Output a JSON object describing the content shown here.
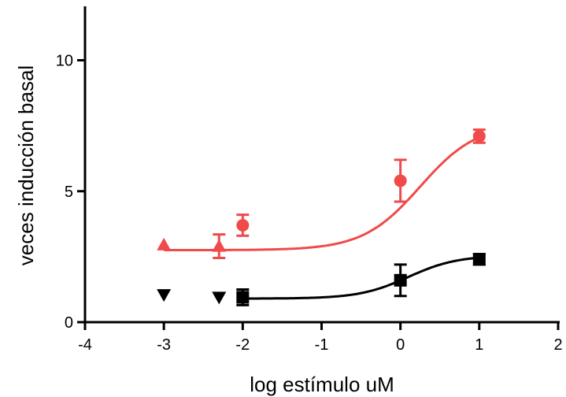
{
  "chart_data": {
    "type": "scatter",
    "title": "",
    "xlabel": "log estímulo uM",
    "ylabel": "veces inducción basal",
    "xlim": [
      -4,
      2
    ],
    "ylim": [
      0,
      12
    ],
    "xticks": [
      -4,
      -3,
      -2,
      -1,
      0,
      1,
      2
    ],
    "xtick_labels": [
      "-4",
      "-3",
      "-2",
      "-1",
      "0",
      "1",
      "2"
    ],
    "yticks": [
      0,
      5,
      10
    ],
    "ytick_labels": [
      "0",
      "5",
      "10"
    ],
    "grid": false,
    "legend": "none",
    "series": [
      {
        "color": "#f04a4a",
        "marker": "triangle-up",
        "points": [
          {
            "x": -3.0,
            "y": 2.95,
            "err": 0
          },
          {
            "x": -2.3,
            "y": 2.9,
            "err": 0.45
          }
        ]
      },
      {
        "color": "#f04a4a",
        "marker": "circle",
        "points": [
          {
            "x": -2.0,
            "y": 3.7,
            "err": 0.4
          },
          {
            "x": 0.0,
            "y": 5.4,
            "err": 0.8
          },
          {
            "x": 1.0,
            "y": 7.1,
            "err": 0.25
          }
        ],
        "fit_curve": {
          "bottom": 2.75,
          "top": 7.6,
          "log_ec50": 0.25,
          "hill": 1.2,
          "x_from": -3.0,
          "x_to": 1.0
        }
      },
      {
        "color": "#000000",
        "marker": "triangle-down",
        "points": [
          {
            "x": -3.0,
            "y": 1.05,
            "err": 0
          },
          {
            "x": -2.3,
            "y": 0.95,
            "err": 0
          }
        ]
      },
      {
        "color": "#000000",
        "marker": "square",
        "points": [
          {
            "x": -2.0,
            "y": 0.95,
            "err": 0.3
          },
          {
            "x": 0.0,
            "y": 1.6,
            "err": 0.6
          },
          {
            "x": 1.0,
            "y": 2.4,
            "err": 0.2
          }
        ],
        "fit_curve": {
          "bottom": 0.9,
          "top": 2.55,
          "log_ec50": 0.1,
          "hill": 1.4,
          "x_from": -2.0,
          "x_to": 1.0
        }
      }
    ]
  }
}
